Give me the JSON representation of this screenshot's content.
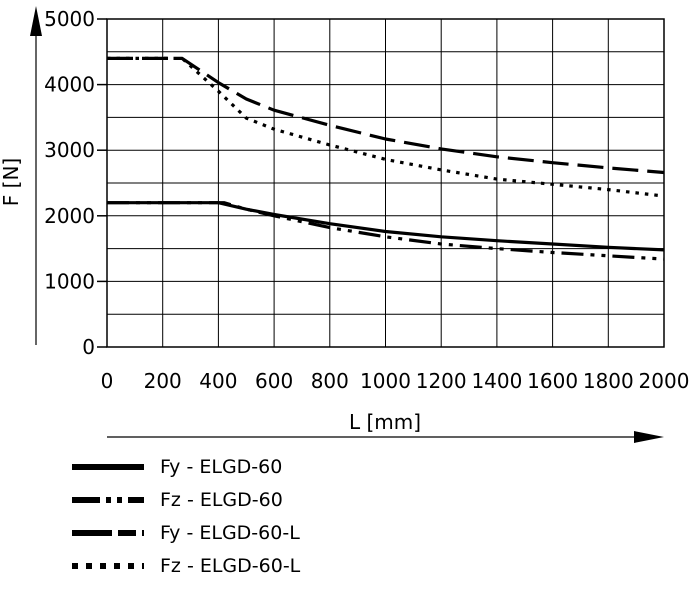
{
  "chart_data": {
    "type": "line",
    "xlabel": "L [mm]",
    "ylabel": "F [N]",
    "xlim": [
      0,
      2000
    ],
    "ylim": [
      0,
      5000
    ],
    "x_ticks": [
      "0",
      "200",
      "400",
      "600",
      "800",
      "1000",
      "1200",
      "1400",
      "1600",
      "1800",
      "2000"
    ],
    "y_ticks": [
      "0",
      "1000",
      "2000",
      "3000",
      "4000",
      "5000"
    ],
    "grid": true,
    "legend_position": "below",
    "series": [
      {
        "name": "Fy - ELGD-60",
        "dash": "solid",
        "points": [
          [
            0,
            2200
          ],
          [
            400,
            2200
          ],
          [
            500,
            2100
          ],
          [
            600,
            2020
          ],
          [
            800,
            1880
          ],
          [
            1000,
            1760
          ],
          [
            1200,
            1680
          ],
          [
            1400,
            1620
          ],
          [
            1600,
            1570
          ],
          [
            1800,
            1520
          ],
          [
            2000,
            1480
          ]
        ]
      },
      {
        "name": "Fz - ELGD-60",
        "dash": "dash-dot-dot",
        "points": [
          [
            0,
            2200
          ],
          [
            420,
            2200
          ],
          [
            500,
            2100
          ],
          [
            600,
            2000
          ],
          [
            800,
            1820
          ],
          [
            1000,
            1680
          ],
          [
            1200,
            1570
          ],
          [
            1400,
            1500
          ],
          [
            1600,
            1440
          ],
          [
            1800,
            1390
          ],
          [
            2000,
            1340
          ]
        ]
      },
      {
        "name": "Fy - ELGD-60-L",
        "dash": "long-dash",
        "points": [
          [
            0,
            4400
          ],
          [
            270,
            4400
          ],
          [
            400,
            4030
          ],
          [
            500,
            3780
          ],
          [
            600,
            3610
          ],
          [
            800,
            3380
          ],
          [
            1000,
            3170
          ],
          [
            1200,
            3020
          ],
          [
            1400,
            2900
          ],
          [
            1600,
            2810
          ],
          [
            1800,
            2730
          ],
          [
            2000,
            2660
          ]
        ]
      },
      {
        "name": "Fz - ELGD-60-L",
        "dash": "dot",
        "points": [
          [
            0,
            4400
          ],
          [
            270,
            4400
          ],
          [
            400,
            3900
          ],
          [
            500,
            3490
          ],
          [
            600,
            3320
          ],
          [
            800,
            3080
          ],
          [
            1000,
            2860
          ],
          [
            1200,
            2700
          ],
          [
            1400,
            2560
          ],
          [
            1600,
            2480
          ],
          [
            1800,
            2400
          ],
          [
            2000,
            2300
          ]
        ]
      }
    ]
  }
}
